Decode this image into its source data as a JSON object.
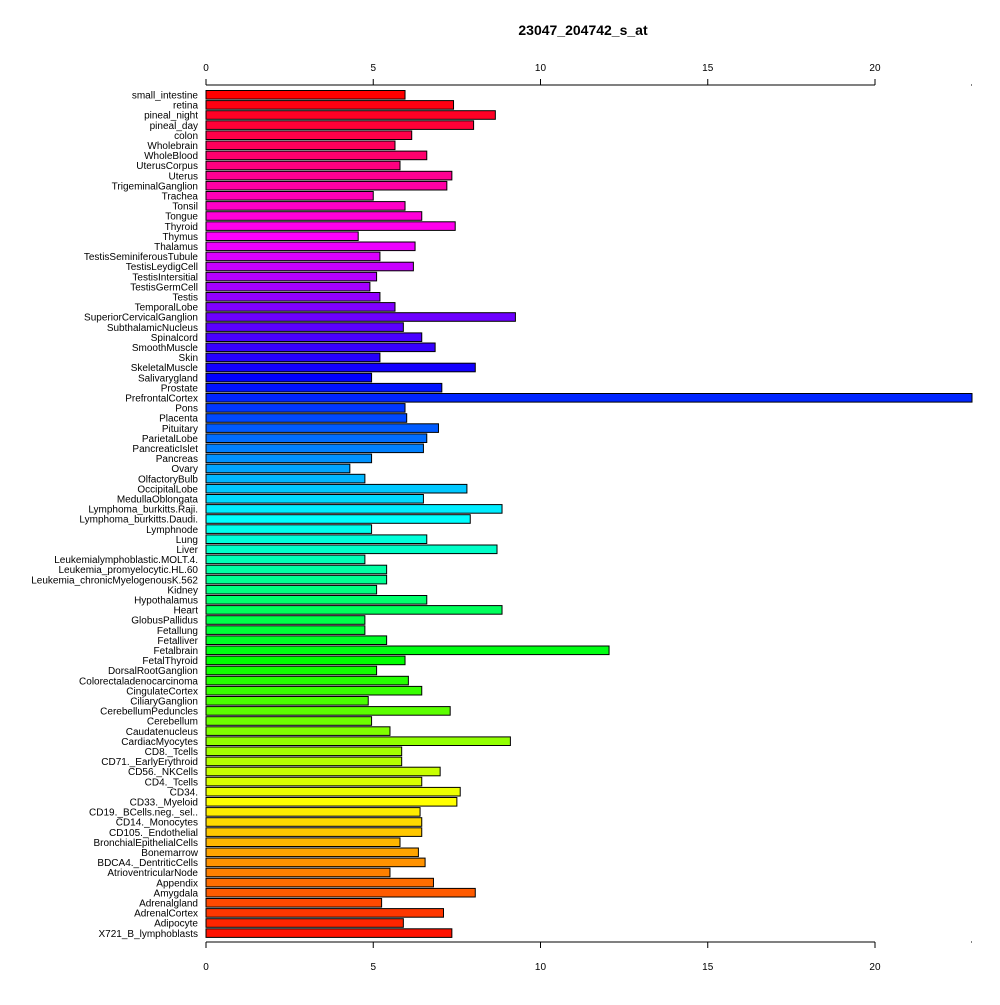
{
  "chart_data": {
    "type": "bar",
    "orientation": "horizontal",
    "title": "23047_204742_s_at",
    "xlabel": "",
    "ylabel": "",
    "xlim": [
      0,
      22.9
    ],
    "ticks": [
      0,
      5,
      10,
      15,
      20
    ],
    "tick_labels": [
      "0",
      "5",
      "10",
      "15",
      "20"
    ],
    "axes": [
      "top",
      "bottom"
    ],
    "grid": false,
    "legend": "none",
    "color_scheme": "rainbow",
    "categories": [
      "small_intestine",
      "retina",
      "pineal_night",
      "pineal_day",
      "colon",
      "Wholebrain",
      "WholeBlood",
      "UterusCorpus",
      "Uterus",
      "TrigeminalGanglion",
      "Trachea",
      "Tonsil",
      "Tongue",
      "Thyroid",
      "Thymus",
      "Thalamus",
      "TestisSeminiferousTubule",
      "TestisLeydigCell",
      "TestisIntersitial",
      "TestisGermCell",
      "Testis",
      "TemporalLobe",
      "SuperiorCervicalGanglion",
      "SubthalamicNucleus",
      "Spinalcord",
      "SmoothMuscle",
      "Skin",
      "SkeletalMuscle",
      "Salivarygland",
      "Prostate",
      "PrefrontalCortex",
      "Pons",
      "Placenta",
      "Pituitary",
      "ParietalLobe",
      "PancreaticIslet",
      "Pancreas",
      "Ovary",
      "OlfactoryBulb",
      "OccipitalLobe",
      "MedullaOblongata",
      "Lymphoma_burkitts.Raji.",
      "Lymphoma_burkitts.Daudi.",
      "Lymphnode",
      "Lung",
      "Liver",
      "Leukemialymphoblastic.MOLT.4.",
      "Leukemia_promyelocytic.HL.60",
      "Leukemia_chronicMyelogenousK.562",
      "Kidney",
      "Hypothalamus",
      "Heart",
      "GlobusPallidus",
      "Fetallung",
      "Fetalliver",
      "Fetalbrain",
      "FetalThyroid",
      "DorsalRootGanglion",
      "Colorectaladenocarcinoma",
      "CingulateCortex",
      "CiliaryGanglion",
      "CerebellumPeduncles",
      "Cerebellum",
      "Caudatenucleus",
      "CardiacMyocytes",
      "CD8._Tcells",
      "CD71._EarlyErythroid",
      "CD56._NKCells",
      "CD4._Tcells",
      "CD34.",
      "CD33._Myeloid",
      "CD19._BCells.neg._sel..",
      "CD14._Monocytes",
      "CD105._Endothelial",
      "BronchialEpithelialCells",
      "Bonemarrow",
      "BDCA4._DentriticCells",
      "AtrioventricularNode",
      "Appendix",
      "Amygdala",
      "Adrenalgland",
      "AdrenalCortex",
      "Adipocyte",
      "X721_B_lymphoblasts"
    ],
    "values": [
      5.95,
      7.4,
      8.65,
      8.0,
      6.15,
      5.65,
      6.6,
      5.8,
      7.35,
      7.2,
      5.0,
      5.95,
      6.45,
      7.45,
      4.55,
      6.25,
      5.2,
      6.2,
      5.1,
      4.9,
      5.2,
      5.65,
      9.25,
      5.9,
      6.45,
      6.85,
      5.2,
      8.05,
      4.95,
      7.05,
      22.9,
      5.95,
      6.0,
      6.95,
      6.6,
      6.5,
      4.95,
      4.3,
      4.75,
      7.8,
      6.5,
      8.85,
      7.9,
      4.95,
      6.6,
      8.7,
      4.75,
      5.4,
      5.4,
      5.1,
      6.6,
      8.85,
      4.75,
      4.75,
      5.4,
      12.05,
      5.95,
      5.1,
      6.05,
      6.45,
      4.85,
      7.3,
      4.95,
      5.5,
      9.1,
      5.85,
      5.85,
      7.0,
      6.45,
      7.6,
      7.5,
      6.4,
      6.45,
      6.45,
      5.8,
      6.35,
      6.55,
      5.5,
      6.8,
      8.05,
      5.25,
      7.1,
      5.9,
      7.35
    ]
  }
}
